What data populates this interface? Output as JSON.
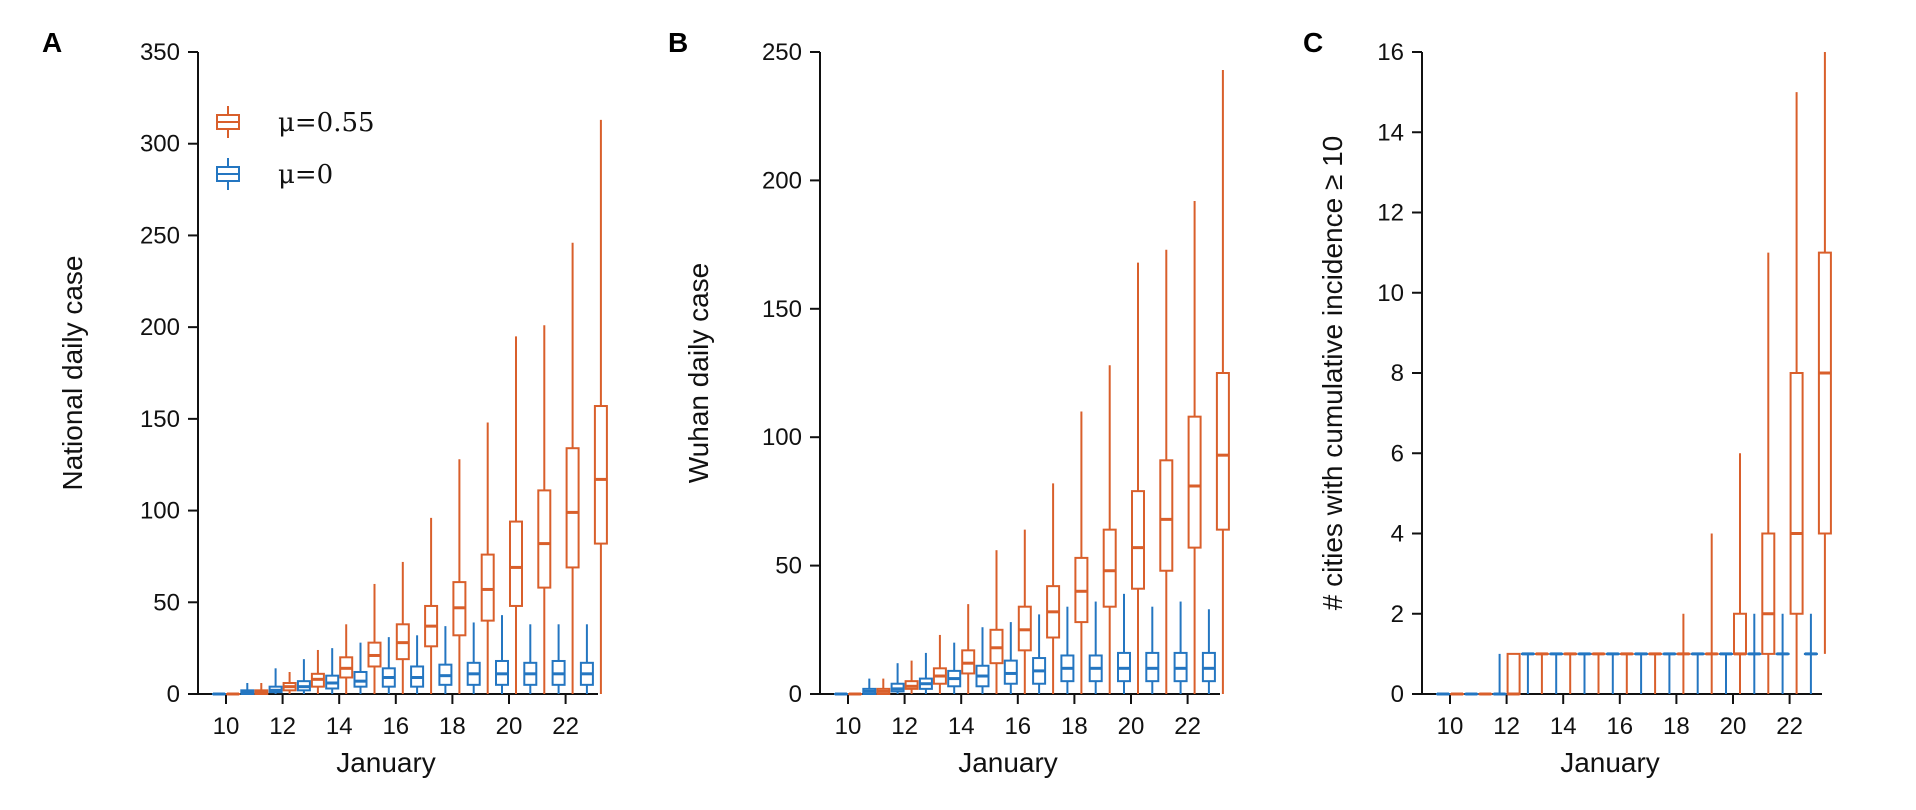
{
  "colors": {
    "mu_055": "#d95f2b",
    "mu_0": "#2476c1",
    "axis": "#111111"
  },
  "legend": [
    {
      "label": "μ=0.55",
      "color_key": "mu_055"
    },
    {
      "label": "μ=0",
      "color_key": "mu_0"
    }
  ],
  "chart_data": [
    {
      "type": "box",
      "panel": "A",
      "xlabel": "January",
      "ylabel": "National daily case",
      "x_ticks": [
        10,
        12,
        14,
        16,
        18,
        20,
        22
      ],
      "y_ticks": [
        0,
        50,
        100,
        150,
        200,
        250,
        300,
        350
      ],
      "xlim": [
        9,
        24
      ],
      "ylim": [
        0,
        350
      ],
      "legend_placement": "top-left",
      "series": [
        {
          "name": "μ=0.55",
          "color_key": "mu_055",
          "boxes": [
            {
              "x": 10,
              "whisker_low": 0,
              "q1": 0,
              "median": 0,
              "q3": 0,
              "whisker_high": 0
            },
            {
              "x": 11,
              "whisker_low": 0,
              "q1": 0,
              "median": 1,
              "q3": 2,
              "whisker_high": 6
            },
            {
              "x": 12,
              "whisker_low": 0,
              "q1": 2,
              "median": 4,
              "q3": 6,
              "whisker_high": 12
            },
            {
              "x": 13,
              "whisker_low": 0,
              "q1": 4,
              "median": 8,
              "q3": 11,
              "whisker_high": 24
            },
            {
              "x": 14,
              "whisker_low": 0,
              "q1": 9,
              "median": 14,
              "q3": 20,
              "whisker_high": 38
            },
            {
              "x": 15,
              "whisker_low": 0,
              "q1": 15,
              "median": 21,
              "q3": 28,
              "whisker_high": 60
            },
            {
              "x": 16,
              "whisker_low": 0,
              "q1": 19,
              "median": 28,
              "q3": 38,
              "whisker_high": 72
            },
            {
              "x": 17,
              "whisker_low": 0,
              "q1": 26,
              "median": 37,
              "q3": 48,
              "whisker_high": 96
            },
            {
              "x": 18,
              "whisker_low": 0,
              "q1": 32,
              "median": 47,
              "q3": 61,
              "whisker_high": 128
            },
            {
              "x": 19,
              "whisker_low": 0,
              "q1": 40,
              "median": 57,
              "q3": 76,
              "whisker_high": 148
            },
            {
              "x": 20,
              "whisker_low": 0,
              "q1": 48,
              "median": 69,
              "q3": 94,
              "whisker_high": 195
            },
            {
              "x": 21,
              "whisker_low": 0,
              "q1": 58,
              "median": 82,
              "q3": 111,
              "whisker_high": 201
            },
            {
              "x": 22,
              "whisker_low": 0,
              "q1": 69,
              "median": 99,
              "q3": 134,
              "whisker_high": 246
            },
            {
              "x": 23,
              "whisker_low": 0,
              "q1": 82,
              "median": 117,
              "q3": 157,
              "whisker_high": 313
            }
          ]
        },
        {
          "name": "μ=0",
          "color_key": "mu_0",
          "boxes": [
            {
              "x": 10,
              "whisker_low": 0,
              "q1": 0,
              "median": 0,
              "q3": 0,
              "whisker_high": 0
            },
            {
              "x": 11,
              "whisker_low": 0,
              "q1": 0,
              "median": 1,
              "q3": 2,
              "whisker_high": 6
            },
            {
              "x": 12,
              "whisker_low": 0,
              "q1": 1,
              "median": 2,
              "q3": 4,
              "whisker_high": 14
            },
            {
              "x": 13,
              "whisker_low": 0,
              "q1": 2,
              "median": 4,
              "q3": 7,
              "whisker_high": 19
            },
            {
              "x": 14,
              "whisker_low": 0,
              "q1": 3,
              "median": 6,
              "q3": 10,
              "whisker_high": 25
            },
            {
              "x": 15,
              "whisker_low": 0,
              "q1": 4,
              "median": 7,
              "q3": 12,
              "whisker_high": 28
            },
            {
              "x": 16,
              "whisker_low": 0,
              "q1": 4,
              "median": 9,
              "q3": 14,
              "whisker_high": 31
            },
            {
              "x": 17,
              "whisker_low": 0,
              "q1": 4,
              "median": 9,
              "q3": 15,
              "whisker_high": 32
            },
            {
              "x": 18,
              "whisker_low": 0,
              "q1": 5,
              "median": 10,
              "q3": 16,
              "whisker_high": 37
            },
            {
              "x": 19,
              "whisker_low": 0,
              "q1": 5,
              "median": 11,
              "q3": 17,
              "whisker_high": 39
            },
            {
              "x": 20,
              "whisker_low": 0,
              "q1": 5,
              "median": 11,
              "q3": 18,
              "whisker_high": 43
            },
            {
              "x": 21,
              "whisker_low": 0,
              "q1": 5,
              "median": 11,
              "q3": 17,
              "whisker_high": 38
            },
            {
              "x": 22,
              "whisker_low": 0,
              "q1": 5,
              "median": 11,
              "q3": 18,
              "whisker_high": 38
            },
            {
              "x": 23,
              "whisker_low": 0,
              "q1": 5,
              "median": 11,
              "q3": 17,
              "whisker_high": 38
            }
          ]
        }
      ]
    },
    {
      "type": "box",
      "panel": "B",
      "xlabel": "January",
      "ylabel": "Wuhan daily case",
      "x_ticks": [
        10,
        12,
        14,
        16,
        18,
        20,
        22
      ],
      "y_ticks": [
        0,
        50,
        100,
        150,
        200,
        250
      ],
      "xlim": [
        9,
        24
      ],
      "ylim": [
        0,
        250
      ],
      "series": [
        {
          "name": "μ=0.55",
          "color_key": "mu_055",
          "boxes": [
            {
              "x": 10,
              "whisker_low": 0,
              "q1": 0,
              "median": 0,
              "q3": 0,
              "whisker_high": 0
            },
            {
              "x": 11,
              "whisker_low": 0,
              "q1": 0,
              "median": 1,
              "q3": 2,
              "whisker_high": 6
            },
            {
              "x": 12,
              "whisker_low": 0,
              "q1": 2,
              "median": 3,
              "q3": 5,
              "whisker_high": 13
            },
            {
              "x": 13,
              "whisker_low": 0,
              "q1": 4,
              "median": 7,
              "q3": 10,
              "whisker_high": 23
            },
            {
              "x": 14,
              "whisker_low": 0,
              "q1": 8,
              "median": 12,
              "q3": 17,
              "whisker_high": 35
            },
            {
              "x": 15,
              "whisker_low": 0,
              "q1": 12,
              "median": 18,
              "q3": 25,
              "whisker_high": 56
            },
            {
              "x": 16,
              "whisker_low": 0,
              "q1": 17,
              "median": 25,
              "q3": 34,
              "whisker_high": 64
            },
            {
              "x": 17,
              "whisker_low": 0,
              "q1": 22,
              "median": 32,
              "q3": 42,
              "whisker_high": 82
            },
            {
              "x": 18,
              "whisker_low": 0,
              "q1": 28,
              "median": 40,
              "q3": 53,
              "whisker_high": 110
            },
            {
              "x": 19,
              "whisker_low": 0,
              "q1": 34,
              "median": 48,
              "q3": 64,
              "whisker_high": 128
            },
            {
              "x": 20,
              "whisker_low": 0,
              "q1": 41,
              "median": 57,
              "q3": 79,
              "whisker_high": 168
            },
            {
              "x": 21,
              "whisker_low": 0,
              "q1": 48,
              "median": 68,
              "q3": 91,
              "whisker_high": 173
            },
            {
              "x": 22,
              "whisker_low": 0,
              "q1": 57,
              "median": 81,
              "q3": 108,
              "whisker_high": 192
            },
            {
              "x": 23,
              "whisker_low": 0,
              "q1": 64,
              "median": 93,
              "q3": 125,
              "whisker_high": 243
            }
          ]
        },
        {
          "name": "μ=0",
          "color_key": "mu_0",
          "boxes": [
            {
              "x": 10,
              "whisker_low": 0,
              "q1": 0,
              "median": 0,
              "q3": 0,
              "whisker_high": 0
            },
            {
              "x": 11,
              "whisker_low": 0,
              "q1": 0,
              "median": 1,
              "q3": 2,
              "whisker_high": 6
            },
            {
              "x": 12,
              "whisker_low": 0,
              "q1": 1,
              "median": 2,
              "q3": 4,
              "whisker_high": 12
            },
            {
              "x": 13,
              "whisker_low": 0,
              "q1": 2,
              "median": 4,
              "q3": 6,
              "whisker_high": 16
            },
            {
              "x": 14,
              "whisker_low": 0,
              "q1": 3,
              "median": 6,
              "q3": 9,
              "whisker_high": 20
            },
            {
              "x": 15,
              "whisker_low": 0,
              "q1": 3,
              "median": 7,
              "q3": 11,
              "whisker_high": 26
            },
            {
              "x": 16,
              "whisker_low": 0,
              "q1": 4,
              "median": 8,
              "q3": 13,
              "whisker_high": 28
            },
            {
              "x": 17,
              "whisker_low": 0,
              "q1": 4,
              "median": 9,
              "q3": 14,
              "whisker_high": 31
            },
            {
              "x": 18,
              "whisker_low": 0,
              "q1": 5,
              "median": 10,
              "q3": 15,
              "whisker_high": 34
            },
            {
              "x": 19,
              "whisker_low": 0,
              "q1": 5,
              "median": 10,
              "q3": 15,
              "whisker_high": 36
            },
            {
              "x": 20,
              "whisker_low": 0,
              "q1": 5,
              "median": 10,
              "q3": 16,
              "whisker_high": 39
            },
            {
              "x": 21,
              "whisker_low": 0,
              "q1": 5,
              "median": 10,
              "q3": 16,
              "whisker_high": 34
            },
            {
              "x": 22,
              "whisker_low": 0,
              "q1": 5,
              "median": 10,
              "q3": 16,
              "whisker_high": 36
            },
            {
              "x": 23,
              "whisker_low": 0,
              "q1": 5,
              "median": 10,
              "q3": 16,
              "whisker_high": 33
            }
          ]
        }
      ]
    },
    {
      "type": "box",
      "panel": "C",
      "xlabel": "January",
      "ylabel": "# cities with cumulative incidence ≥ 10",
      "x_ticks": [
        10,
        12,
        14,
        16,
        18,
        20,
        22
      ],
      "y_ticks": [
        0,
        2,
        4,
        6,
        8,
        10,
        12,
        14,
        16
      ],
      "xlim": [
        9,
        24
      ],
      "ylim": [
        0,
        16
      ],
      "series": [
        {
          "name": "μ=0.55",
          "color_key": "mu_055",
          "boxes": [
            {
              "x": 10,
              "whisker_low": 0,
              "q1": 0,
              "median": 0,
              "q3": 0,
              "whisker_high": 0
            },
            {
              "x": 11,
              "whisker_low": 0,
              "q1": 0,
              "median": 0,
              "q3": 0,
              "whisker_high": 0
            },
            {
              "x": 12,
              "whisker_low": 0,
              "q1": 0,
              "median": 0,
              "q3": 1,
              "whisker_high": 1
            },
            {
              "x": 13,
              "whisker_low": 0,
              "q1": 1,
              "median": 1,
              "q3": 1,
              "whisker_high": 1
            },
            {
              "x": 14,
              "whisker_low": 0,
              "q1": 1,
              "median": 1,
              "q3": 1,
              "whisker_high": 1
            },
            {
              "x": 15,
              "whisker_low": 0,
              "q1": 1,
              "median": 1,
              "q3": 1,
              "whisker_high": 1
            },
            {
              "x": 16,
              "whisker_low": 0,
              "q1": 1,
              "median": 1,
              "q3": 1,
              "whisker_high": 1
            },
            {
              "x": 17,
              "whisker_low": 0,
              "q1": 1,
              "median": 1,
              "q3": 1,
              "whisker_high": 1
            },
            {
              "x": 18,
              "whisker_low": 0,
              "q1": 1,
              "median": 1,
              "q3": 1,
              "whisker_high": 2
            },
            {
              "x": 19,
              "whisker_low": 0,
              "q1": 1,
              "median": 1,
              "q3": 1,
              "whisker_high": 4
            },
            {
              "x": 20,
              "whisker_low": 0,
              "q1": 1,
              "median": 1,
              "q3": 2,
              "whisker_high": 6
            },
            {
              "x": 21,
              "whisker_low": 0,
              "q1": 1,
              "median": 2,
              "q3": 4,
              "whisker_high": 11
            },
            {
              "x": 22,
              "whisker_low": 0,
              "q1": 2,
              "median": 4,
              "q3": 8,
              "whisker_high": 15
            },
            {
              "x": 23,
              "whisker_low": 1,
              "q1": 4,
              "median": 8,
              "q3": 11,
              "whisker_high": 16
            }
          ]
        },
        {
          "name": "μ=0",
          "color_key": "mu_0",
          "boxes": [
            {
              "x": 10,
              "whisker_low": 0,
              "q1": 0,
              "median": 0,
              "q3": 0,
              "whisker_high": 0
            },
            {
              "x": 11,
              "whisker_low": 0,
              "q1": 0,
              "median": 0,
              "q3": 0,
              "whisker_high": 0
            },
            {
              "x": 12,
              "whisker_low": 0,
              "q1": 0,
              "median": 0,
              "q3": 0,
              "whisker_high": 1
            },
            {
              "x": 13,
              "whisker_low": 0,
              "q1": 1,
              "median": 1,
              "q3": 1,
              "whisker_high": 1
            },
            {
              "x": 14,
              "whisker_low": 0,
              "q1": 1,
              "median": 1,
              "q3": 1,
              "whisker_high": 1
            },
            {
              "x": 15,
              "whisker_low": 0,
              "q1": 1,
              "median": 1,
              "q3": 1,
              "whisker_high": 1
            },
            {
              "x": 16,
              "whisker_low": 0,
              "q1": 1,
              "median": 1,
              "q3": 1,
              "whisker_high": 1
            },
            {
              "x": 17,
              "whisker_low": 0,
              "q1": 1,
              "median": 1,
              "q3": 1,
              "whisker_high": 1
            },
            {
              "x": 18,
              "whisker_low": 0,
              "q1": 1,
              "median": 1,
              "q3": 1,
              "whisker_high": 1
            },
            {
              "x": 19,
              "whisker_low": 0,
              "q1": 1,
              "median": 1,
              "q3": 1,
              "whisker_high": 1
            },
            {
              "x": 20,
              "whisker_low": 0,
              "q1": 1,
              "median": 1,
              "q3": 1,
              "whisker_high": 1
            },
            {
              "x": 21,
              "whisker_low": 0,
              "q1": 1,
              "median": 1,
              "q3": 1,
              "whisker_high": 2
            },
            {
              "x": 22,
              "whisker_low": 0,
              "q1": 1,
              "median": 1,
              "q3": 1,
              "whisker_high": 2
            },
            {
              "x": 23,
              "whisker_low": 0,
              "q1": 1,
              "median": 1,
              "q3": 1,
              "whisker_high": 2
            }
          ]
        }
      ]
    }
  ]
}
